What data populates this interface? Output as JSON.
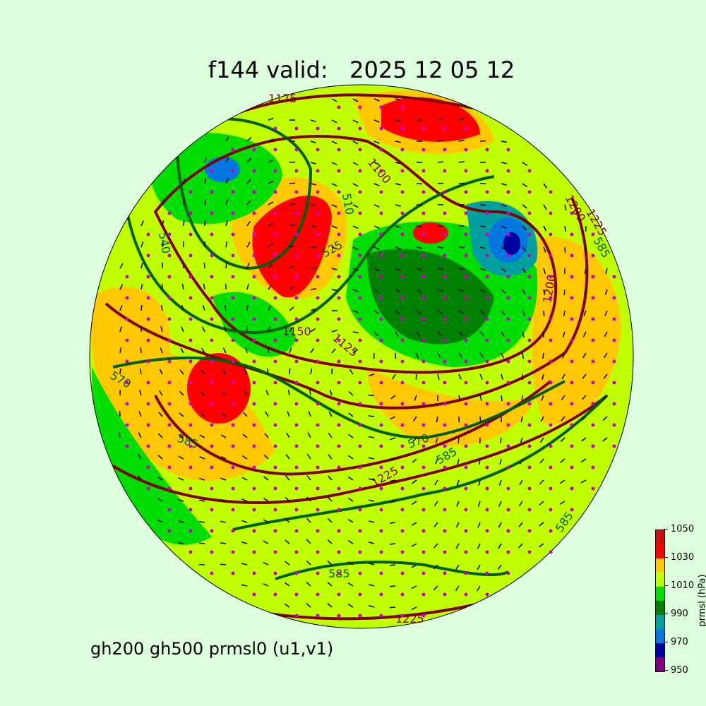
{
  "title": "f144 valid:   2025 12 05 12",
  "subtitle": "gh200 gh500 prmsl0 (u1,v1)",
  "colorbar": {
    "label": "prmsl (hPa)",
    "ticks": [
      "950",
      "970",
      "990",
      "1010",
      "1030",
      "1050"
    ],
    "levels": [
      950,
      960,
      970,
      980,
      990,
      1000,
      1010,
      1020,
      1030,
      1040,
      1050
    ],
    "colors": [
      "#800080",
      "#0000a0",
      "#0078e0",
      "#00a0a0",
      "#008000",
      "#00dd00",
      "#bfff00",
      "#ffc800",
      "#ff0000",
      "#cc1010"
    ]
  },
  "contour_labels": {
    "gh200": [
      "1175",
      "1200",
      "1225",
      "1150",
      "1125",
      "1100",
      "1200",
      "1225",
      "1225"
    ],
    "gh500": [
      "510",
      "525",
      "570",
      "585",
      "570",
      "585",
      "585",
      "585",
      "540",
      "585"
    ]
  },
  "colors": {
    "gh200": "#800000",
    "gh500": "#006000",
    "wind": "#000000",
    "station": "#cc00cc",
    "background": "#ddffdd"
  }
}
